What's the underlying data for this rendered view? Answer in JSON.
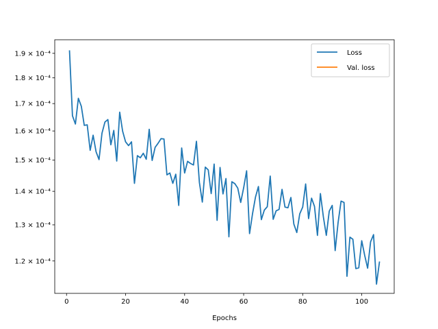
{
  "chart_data": {
    "type": "line",
    "title": "",
    "xlabel": "Epochs",
    "ylabel": "",
    "yscale": "log",
    "xlim": [
      -4,
      111
    ],
    "ylim": [
      0.0001117,
      0.0001958
    ],
    "grid": false,
    "legend_position": "top-right",
    "x_ticks": [
      0,
      20,
      40,
      60,
      80,
      100
    ],
    "y_ticks": [
      {
        "value": 0.00012,
        "label": "1.2 × 10⁻⁴"
      },
      {
        "value": 0.00013,
        "label": "1.3 × 10⁻⁴"
      },
      {
        "value": 0.00014,
        "label": "1.4 × 10⁻⁴"
      },
      {
        "value": 0.00015,
        "label": "1.5 × 10⁻⁴"
      },
      {
        "value": 0.00016,
        "label": "1.6 × 10⁻⁴"
      },
      {
        "value": 0.00017,
        "label": "1.7 × 10⁻⁴"
      },
      {
        "value": 0.00018,
        "label": "1.8 × 10⁻⁴"
      },
      {
        "value": 0.00019,
        "label": "1.9 × 10⁻⁴"
      }
    ],
    "series": [
      {
        "name": "Loss",
        "color": "#1f77b4",
        "x": [
          1,
          2,
          3,
          4,
          5,
          6,
          7,
          8,
          9,
          10,
          11,
          12,
          13,
          14,
          15,
          16,
          17,
          18,
          19,
          20,
          21,
          22,
          23,
          24,
          25,
          26,
          27,
          28,
          29,
          30,
          31,
          32,
          33,
          34,
          35,
          36,
          37,
          38,
          39,
          40,
          41,
          42,
          43,
          44,
          45,
          46,
          47,
          48,
          49,
          50,
          51,
          52,
          53,
          54,
          55,
          56,
          57,
          58,
          59,
          60,
          61,
          62,
          63,
          64,
          65,
          66,
          67,
          68,
          69,
          70,
          71,
          72,
          73,
          74,
          75,
          76,
          77,
          78,
          79,
          80,
          81,
          82,
          83,
          84,
          85,
          86,
          87,
          88,
          89,
          90,
          91,
          92,
          93,
          94,
          95,
          96,
          97,
          98,
          99,
          100,
          101,
          102,
          103,
          104,
          105,
          106
        ],
        "values": [
          0.000191,
          0.0001655,
          0.0001625,
          0.000172,
          0.000169,
          0.000162,
          0.0001622,
          0.0001533,
          0.0001585,
          0.0001528,
          0.0001502,
          0.0001592,
          0.0001632,
          0.0001641,
          0.0001552,
          0.0001602,
          0.0001497,
          0.0001668,
          0.0001599,
          0.0001562,
          0.0001549,
          0.0001562,
          0.0001425,
          0.0001515,
          0.0001508,
          0.0001523,
          0.0001503,
          0.0001606,
          0.0001499,
          0.0001543,
          0.0001557,
          0.0001573,
          0.0001572,
          0.0001452,
          0.0001458,
          0.0001425,
          0.0001454,
          0.0001357,
          0.0001541,
          0.0001458,
          0.0001496,
          0.0001489,
          0.0001484,
          0.0001564,
          0.0001428,
          0.0001367,
          0.0001477,
          0.0001468,
          0.0001393,
          0.0001487,
          0.0001313,
          0.0001476,
          0.0001392,
          0.000144,
          0.0001266,
          0.000143,
          0.0001424,
          0.000141,
          0.0001366,
          0.0001411,
          0.0001465,
          0.0001275,
          0.0001332,
          0.0001382,
          0.0001415,
          0.0001315,
          0.0001343,
          0.0001353,
          0.0001448,
          0.0001316,
          0.0001341,
          0.0001345,
          0.0001406,
          0.0001352,
          0.000135,
          0.0001381,
          0.0001302,
          0.0001278,
          0.0001332,
          0.0001352,
          0.0001423,
          0.0001318,
          0.0001379,
          0.0001354,
          0.000127,
          0.0001393,
          0.0001323,
          0.000127,
          0.000134,
          0.0001357,
          0.0001228,
          0.0001307,
          0.000137,
          0.0001366,
          0.000116,
          0.0001265,
          0.0001259,
          0.000118,
          0.0001182,
          0.0001255,
          0.0001215,
          0.0001181,
          0.0001252,
          0.0001272,
          0.000114,
          0.0001197
        ]
      },
      {
        "name": "Val. loss",
        "color": "#ff7f0e",
        "x": [],
        "values": []
      }
    ]
  }
}
